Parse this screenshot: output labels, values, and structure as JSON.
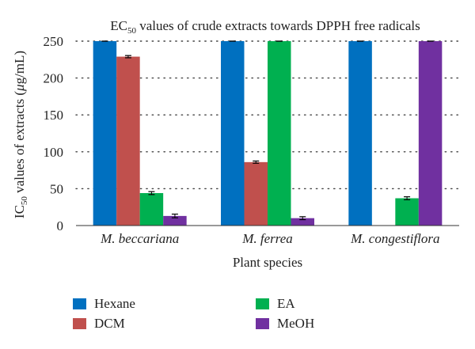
{
  "chart_data": {
    "type": "bar",
    "title_prefix": "EC",
    "title_subscript": "50",
    "title_suffix": " values of crude extracts towards DPPH free radicals",
    "xlabel": "Plant species",
    "ylabel_prefix": "IC",
    "ylabel_subscript": "50",
    "ylabel_middle": " values of extracts (",
    "ylabel_mu": "μ",
    "ylabel_suffix": "g/mL)",
    "ylim": [
      0,
      250
    ],
    "yticks": [
      0,
      50,
      100,
      150,
      200,
      250
    ],
    "grid": "horizontal-dotted",
    "categories": [
      "M. beccariana",
      "M. ferrea",
      "M. congestiflora"
    ],
    "series": [
      {
        "name": "Hexane",
        "color": "#0070c0",
        "values": [
          250,
          250,
          250
        ],
        "errors": [
          0,
          0,
          0
        ]
      },
      {
        "name": "DCM",
        "color": "#c0504d",
        "values": [
          229,
          86,
          null
        ],
        "errors": [
          1.5,
          1.5,
          0
        ]
      },
      {
        "name": "EA",
        "color": "#00b050",
        "values": [
          44,
          250,
          37
        ],
        "errors": [
          2,
          0,
          2
        ]
      },
      {
        "name": "MeOH",
        "color": "#7030a0",
        "values": [
          13,
          10,
          250
        ],
        "errors": [
          2.5,
          2,
          0
        ]
      }
    ]
  }
}
